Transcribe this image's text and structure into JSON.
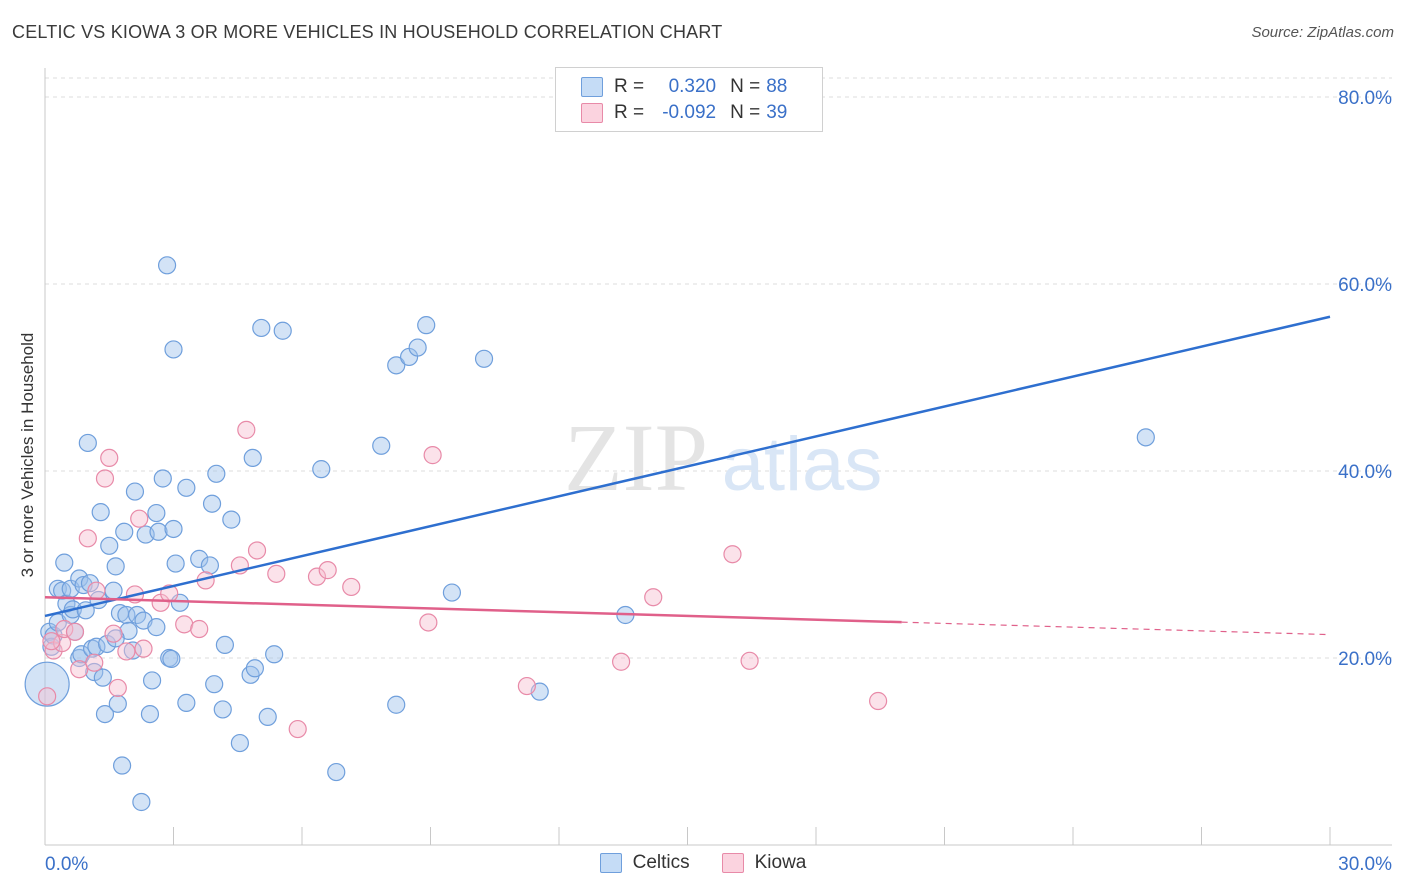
{
  "title": "CELTIC VS KIOWA 3 OR MORE VEHICLES IN HOUSEHOLD CORRELATION CHART",
  "source": "Source: ZipAtlas.com",
  "watermark": {
    "zip": "ZIP",
    "atlas": "atlas"
  },
  "stats": [
    {
      "r_label": "R =",
      "r_value": "0.320",
      "n_label": "N =",
      "n_value": "88",
      "color": "#9dc0ec",
      "border": "#6f9fdc"
    },
    {
      "r_label": "R =",
      "r_value": "-0.092",
      "n_label": "N =",
      "n_value": "39",
      "color": "#f7bfd0",
      "border": "#e88aa8"
    }
  ],
  "legend": [
    {
      "label": "Celtics",
      "color": "#9dc0ec",
      "border": "#6f9fdc"
    },
    {
      "label": "Kiowa",
      "color": "#f7bfd0",
      "border": "#e88aa8"
    }
  ],
  "chart_data": {
    "type": "scatter",
    "xlabel": "",
    "ylabel": "3 or more Vehicles in Household",
    "xlim": [
      0,
      30
    ],
    "ylim": [
      0,
      80
    ],
    "x_tick_labels": {
      "left": "0.0%",
      "right": "30.0%"
    },
    "y_ticks": [
      20,
      40,
      60,
      80
    ],
    "y_tick_labels": [
      "20.0%",
      "40.0%",
      "60.0%",
      "80.0%"
    ],
    "grid": "horizontal dashed",
    "series": [
      {
        "name": "Celtics",
        "color": "#6f9fdc",
        "fill": "#9dc0ec",
        "line_color": "#2e6fcf",
        "trend": {
          "x0": 0,
          "y0": 24.5,
          "x1": 30,
          "y1": 56.5,
          "dashed_from": null
        },
        "points": [
          [
            0.1,
            22.8
          ],
          [
            0.15,
            21.2
          ],
          [
            0.2,
            22.4
          ],
          [
            0.3,
            23.8
          ],
          [
            0.3,
            27.4
          ],
          [
            0.4,
            27.2
          ],
          [
            0.45,
            30.2
          ],
          [
            0.5,
            25.8
          ],
          [
            0.6,
            24.6
          ],
          [
            0.6,
            27.4
          ],
          [
            0.65,
            25.2
          ],
          [
            0.7,
            22.8
          ],
          [
            0.8,
            28.5
          ],
          [
            0.8,
            20
          ],
          [
            0.85,
            20.4
          ],
          [
            0.9,
            27.8
          ],
          [
            0.95,
            25.1
          ],
          [
            1.0,
            43
          ],
          [
            1.05,
            28
          ],
          [
            1.1,
            21
          ],
          [
            1.15,
            18.5
          ],
          [
            1.2,
            21.2
          ],
          [
            1.25,
            26.2
          ],
          [
            1.3,
            35.6
          ],
          [
            1.35,
            17.9
          ],
          [
            1.4,
            14
          ],
          [
            1.45,
            21.5
          ],
          [
            1.5,
            32
          ],
          [
            1.6,
            27.2
          ],
          [
            1.65,
            29.8
          ],
          [
            1.7,
            15.1
          ],
          [
            1.75,
            24.8
          ],
          [
            1.8,
            8.5
          ],
          [
            1.85,
            33.5
          ],
          [
            1.9,
            24.6
          ],
          [
            1.95,
            22.9
          ],
          [
            2.1,
            37.8
          ],
          [
            2.15,
            24.6
          ],
          [
            2.25,
            4.6
          ],
          [
            2.3,
            24
          ],
          [
            2.35,
            33.2
          ],
          [
            2.45,
            14
          ],
          [
            2.5,
            17.6
          ],
          [
            2.6,
            23.3
          ],
          [
            2.6,
            35.5
          ],
          [
            2.65,
            33.5
          ],
          [
            2.75,
            39.2
          ],
          [
            2.85,
            62
          ],
          [
            2.9,
            20
          ],
          [
            2.95,
            19.9
          ],
          [
            3.0,
            33.8
          ],
          [
            3.0,
            53
          ],
          [
            3.05,
            30.1
          ],
          [
            3.15,
            25.9
          ],
          [
            3.3,
            38.2
          ],
          [
            3.3,
            15.2
          ],
          [
            3.6,
            30.6
          ],
          [
            3.85,
            29.9
          ],
          [
            3.9,
            36.5
          ],
          [
            3.95,
            17.2
          ],
          [
            4.0,
            39.7
          ],
          [
            4.15,
            14.5
          ],
          [
            4.2,
            21.4
          ],
          [
            4.35,
            34.8
          ],
          [
            4.55,
            10.9
          ],
          [
            4.8,
            18.2
          ],
          [
            4.85,
            41.4
          ],
          [
            4.9,
            18.9
          ],
          [
            5.05,
            55.3
          ],
          [
            5.2,
            13.7
          ],
          [
            5.35,
            20.4
          ],
          [
            5.55,
            55
          ],
          [
            6.45,
            40.2
          ],
          [
            6.8,
            7.8
          ],
          [
            7.85,
            42.7
          ],
          [
            8.2,
            51.3
          ],
          [
            8.2,
            15
          ],
          [
            8.5,
            52.2
          ],
          [
            8.7,
            53.2
          ],
          [
            8.9,
            55.6
          ],
          [
            9.5,
            27
          ],
          [
            10.25,
            52
          ],
          [
            11.55,
            16.4
          ],
          [
            13.55,
            24.6
          ],
          [
            25.7,
            43.6
          ],
          [
            0.05,
            17.2
          ],
          [
            1.65,
            22.1
          ],
          [
            2.05,
            20.8
          ]
        ]
      },
      {
        "name": "Kiowa",
        "color": "#e88aa8",
        "fill": "#f7bfd0",
        "line_color": "#e0608a",
        "trend": {
          "x0": 0,
          "y0": 26.5,
          "x1": 30,
          "y1": 22.5,
          "dashed_from": 20
        },
        "points": [
          [
            0.05,
            15.9
          ],
          [
            0.2,
            20.8
          ],
          [
            0.4,
            21.6
          ],
          [
            0.45,
            23.1
          ],
          [
            0.7,
            22.8
          ],
          [
            0.8,
            18.8
          ],
          [
            1.0,
            32.8
          ],
          [
            1.15,
            19.5
          ],
          [
            1.2,
            27.2
          ],
          [
            1.5,
            41.4
          ],
          [
            1.4,
            39.2
          ],
          [
            1.6,
            22.6
          ],
          [
            1.7,
            16.8
          ],
          [
            1.9,
            20.7
          ],
          [
            2.1,
            26.8
          ],
          [
            2.2,
            34.9
          ],
          [
            2.3,
            21
          ],
          [
            2.7,
            25.9
          ],
          [
            2.9,
            26.9
          ],
          [
            3.25,
            23.6
          ],
          [
            3.6,
            23.1
          ],
          [
            3.75,
            28.3
          ],
          [
            4.55,
            29.9
          ],
          [
            4.7,
            44.4
          ],
          [
            4.95,
            31.5
          ],
          [
            5.4,
            29
          ],
          [
            5.9,
            12.4
          ],
          [
            6.35,
            28.7
          ],
          [
            6.6,
            29.4
          ],
          [
            7.15,
            27.6
          ],
          [
            8.95,
            23.8
          ],
          [
            9.05,
            41.7
          ],
          [
            11.25,
            17
          ],
          [
            13.45,
            19.6
          ],
          [
            14.2,
            26.5
          ],
          [
            16.05,
            31.1
          ],
          [
            16.45,
            19.7
          ],
          [
            19.45,
            15.4
          ],
          [
            0.15,
            21.8
          ]
        ]
      }
    ]
  }
}
